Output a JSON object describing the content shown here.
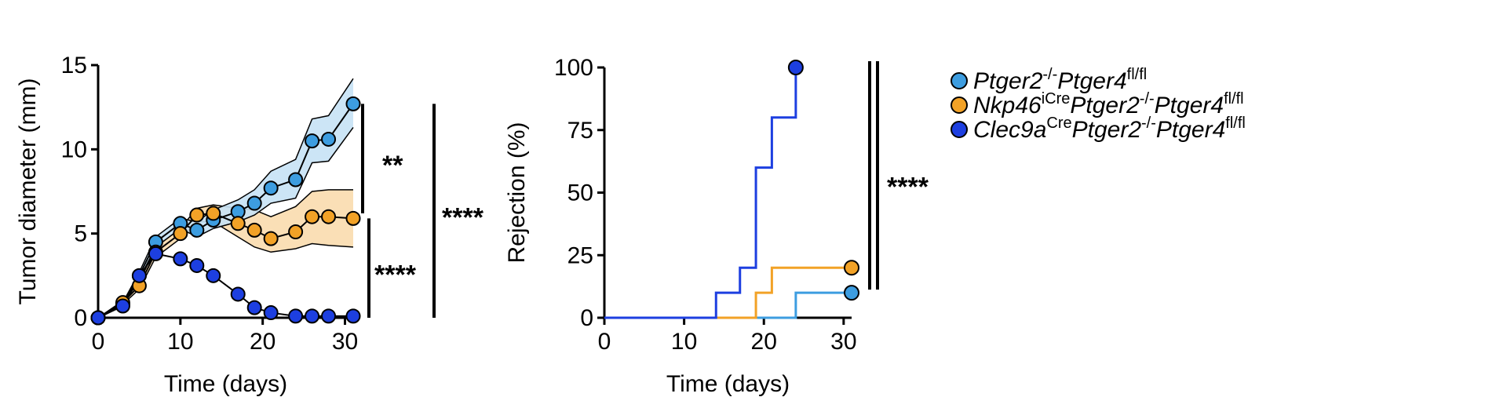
{
  "colors": {
    "light_blue": "#3d9de0",
    "orange": "#f2a227",
    "dark_blue": "#1d3fe0",
    "light_blue_band": "#c6e2f5",
    "orange_band": "#fadcae"
  },
  "legend": [
    {
      "color_key": "light_blue",
      "parts": [
        {
          "t": "Ptger2",
          "sup": false
        },
        {
          "t": "-/-",
          "sup": true
        },
        {
          "t": "Ptger4",
          "sup": false
        },
        {
          "t": "fl/fl",
          "sup": true
        }
      ]
    },
    {
      "color_key": "orange",
      "parts": [
        {
          "t": "Nkp46",
          "sup": false
        },
        {
          "t": "iCre",
          "sup": true
        },
        {
          "t": "Ptger2",
          "sup": false
        },
        {
          "t": "-/-",
          "sup": true
        },
        {
          "t": "Ptger4",
          "sup": false
        },
        {
          "t": "fl/fl",
          "sup": true
        }
      ]
    },
    {
      "color_key": "dark_blue",
      "parts": [
        {
          "t": "Clec9a",
          "sup": false
        },
        {
          "t": "Cre",
          "sup": true
        },
        {
          "t": "Ptger2",
          "sup": false
        },
        {
          "t": "-/-",
          "sup": true
        },
        {
          "t": "Ptger4",
          "sup": false
        },
        {
          "t": "fl/fl",
          "sup": true
        }
      ]
    }
  ],
  "chart_data": [
    {
      "type": "line",
      "xlabel": "Time (days)",
      "ylabel": "Tumor diameter (mm)",
      "xlim": [
        0,
        31
      ],
      "ylim": [
        0,
        15
      ],
      "xticks": [
        "0",
        "10",
        "20",
        "30"
      ],
      "yticks": [
        "0",
        "5",
        "10",
        "15"
      ],
      "series": [
        {
          "color_key": "dark_blue",
          "x": [
            0,
            3,
            5,
            7,
            10,
            12,
            14,
            17,
            19,
            21,
            24,
            26,
            28,
            31
          ],
          "y": [
            0,
            0.7,
            2.5,
            3.8,
            3.5,
            3.1,
            2.5,
            1.4,
            0.6,
            0.3,
            0.1,
            0.1,
            0.1,
            0.1
          ]
        },
        {
          "color_key": "orange",
          "x": [
            0,
            3,
            5,
            7,
            10,
            12,
            14,
            17,
            19,
            21,
            24,
            26,
            28,
            31
          ],
          "y": [
            0,
            0.9,
            1.9,
            3.9,
            5.0,
            6.1,
            6.2,
            5.6,
            5.2,
            4.7,
            5.1,
            6.0,
            6.0,
            5.9
          ],
          "band_lower": [
            0,
            0.8,
            1.7,
            3.6,
            4.7,
            5.7,
            5.7,
            4.8,
            4.2,
            3.9,
            4.1,
            4.4,
            4.3,
            4.2
          ],
          "band_upper": [
            0,
            1.0,
            2.1,
            4.2,
            5.3,
            6.5,
            6.7,
            6.5,
            6.4,
            6.0,
            6.6,
            7.5,
            7.6,
            7.6
          ]
        },
        {
          "color_key": "light_blue",
          "x": [
            0,
            3,
            5,
            7,
            10,
            12,
            14,
            17,
            19,
            21,
            24,
            26,
            28,
            31
          ],
          "y": [
            0,
            0.8,
            2.5,
            4.5,
            5.6,
            5.2,
            5.8,
            6.3,
            6.8,
            7.7,
            8.2,
            10.5,
            10.6,
            12.7
          ],
          "band_lower": [
            0,
            0.7,
            2.3,
            4.2,
            5.3,
            4.8,
            5.3,
            5.7,
            6.1,
            6.8,
            7.1,
            9.2,
            9.3,
            11.3
          ],
          "band_upper": [
            0,
            0.9,
            2.7,
            4.8,
            5.9,
            5.7,
            6.4,
            7.0,
            7.6,
            8.7,
            9.4,
            11.8,
            12.0,
            14.2
          ]
        }
      ],
      "significance": [
        {
          "label": "**",
          "y_from": 6.2,
          "y_to": 12.7
        },
        {
          "label": "****",
          "y_from": 0,
          "y_to": 5.9
        },
        {
          "label": "****",
          "y_from": 0,
          "y_to": 12.7
        }
      ]
    },
    {
      "type": "line",
      "step": true,
      "xlabel": "Time (days)",
      "ylabel": "Rejection (%)",
      "xlim": [
        0,
        31
      ],
      "ylim": [
        0,
        100
      ],
      "xticks": [
        "0",
        "10",
        "20",
        "30"
      ],
      "yticks": [
        "0",
        "25",
        "50",
        "75",
        "100"
      ],
      "series": [
        {
          "color_key": "light_blue",
          "x": [
            0,
            24,
            24,
            31
          ],
          "y": [
            0,
            0,
            10,
            10
          ],
          "end_marker": [
            31,
            10
          ]
        },
        {
          "color_key": "orange",
          "x": [
            0,
            19,
            19,
            21,
            21,
            31
          ],
          "y": [
            0,
            0,
            10,
            10,
            20,
            20
          ],
          "end_marker": [
            31,
            20
          ]
        },
        {
          "color_key": "dark_blue",
          "x": [
            0,
            14,
            14,
            17,
            17,
            19,
            19,
            21,
            21,
            24,
            24
          ],
          "y": [
            0,
            0,
            10,
            10,
            20,
            20,
            60,
            60,
            80,
            80,
            100
          ],
          "end_marker": [
            24,
            100
          ]
        }
      ],
      "significance": [
        {
          "label": "****",
          "y_from": 10,
          "y_to": 100
        }
      ]
    }
  ]
}
